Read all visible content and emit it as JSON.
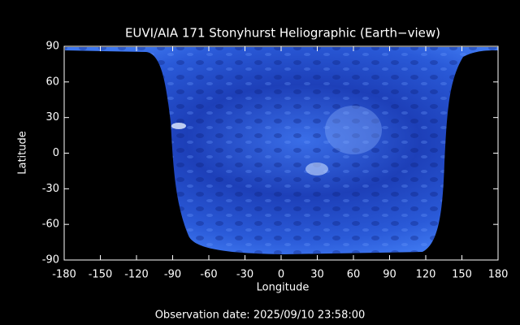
{
  "chart_data": {
    "type": "image",
    "title": "EUVI/AIA 171 Stonyhurst Heliographic (Earth−view)",
    "x_label": "Longitude",
    "y_label": "Latitude",
    "xlim": [
      -180,
      180
    ],
    "xticks": [
      -180,
      -150,
      -120,
      -90,
      -60,
      -30,
      0,
      30,
      60,
      90,
      120,
      150,
      180
    ],
    "ylim": [
      -90,
      90
    ],
    "yticks": [
      -90,
      -60,
      -30,
      0,
      30,
      60,
      90
    ],
    "footer": "Observation date: 2025/09/10 23:58:00"
  }
}
